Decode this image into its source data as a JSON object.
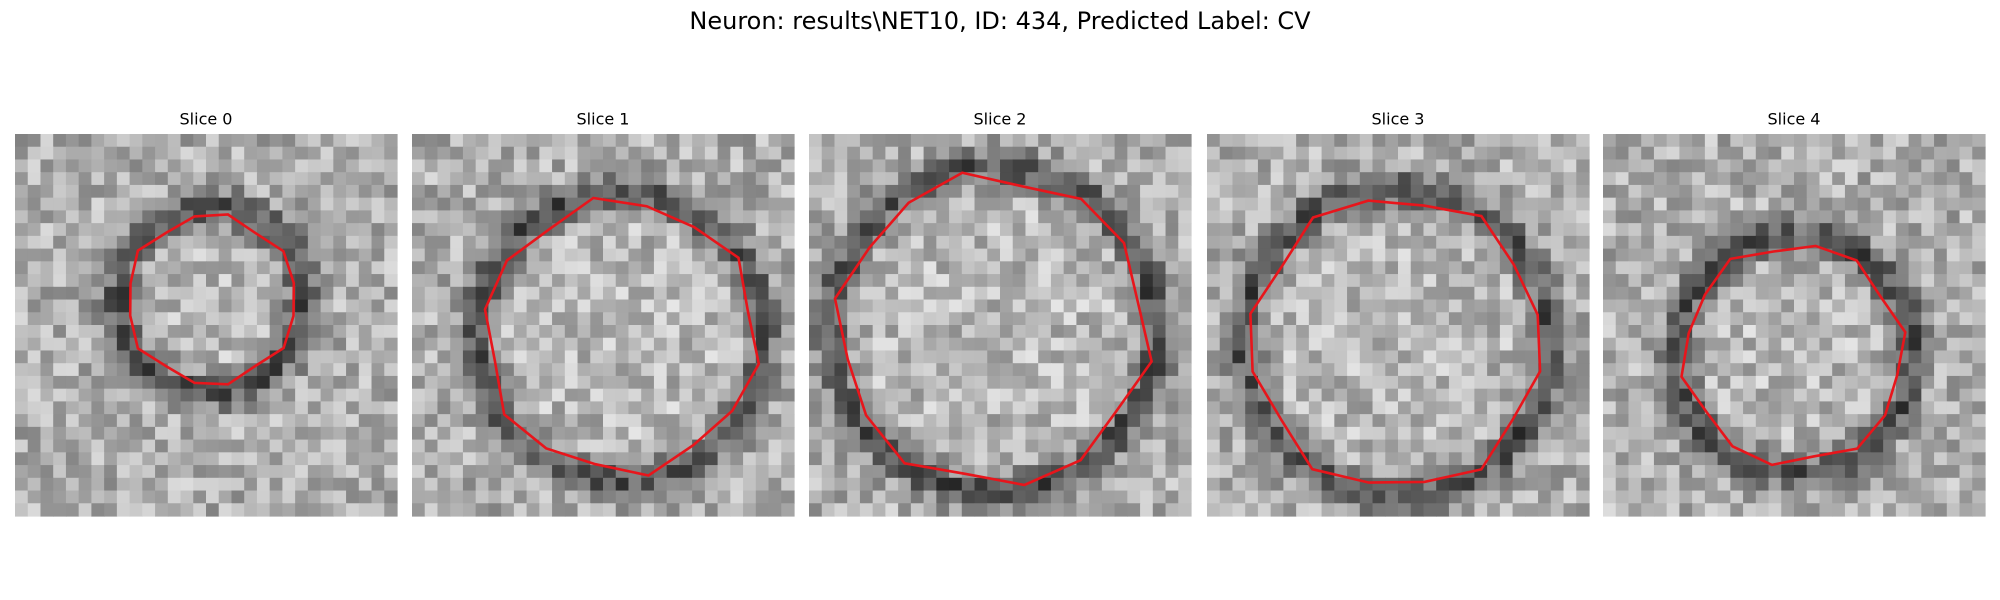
{
  "title": "Neuron: results\\NET10, ID: 434, Predicted Label: CV",
  "panels": [
    {
      "title": "Slice 0"
    },
    {
      "title": "Slice 1"
    },
    {
      "title": "Slice 2"
    },
    {
      "title": "Slice 3"
    },
    {
      "title": "Slice 4"
    }
  ]
}
